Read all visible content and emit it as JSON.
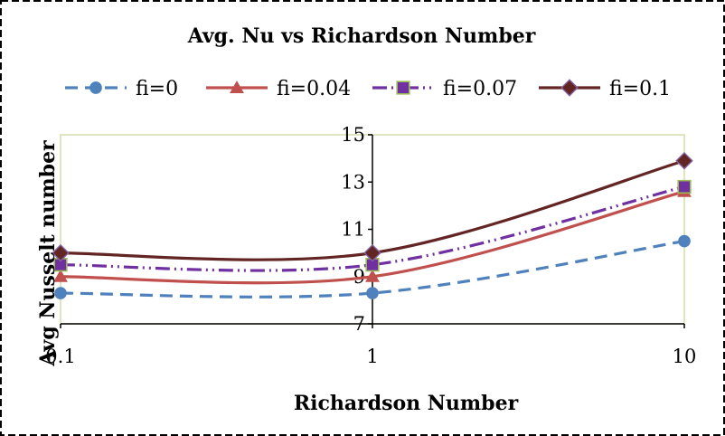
{
  "chart_data": {
    "type": "line",
    "title": "Avg. Nu vs Richardson Number",
    "xlabel": "Richardson Number",
    "ylabel": "Avg Nusselt number",
    "x_scale": "log",
    "x": [
      0.1,
      1,
      10
    ],
    "x_tick_labels": [
      "0.1",
      "1",
      "10"
    ],
    "ylim": [
      7,
      15
    ],
    "y_ticks": [
      7,
      9,
      11,
      13,
      15
    ],
    "y_tick_labels": [
      "7",
      "9",
      "11",
      "13",
      "15"
    ],
    "grid": false,
    "legend_position": "top",
    "series": [
      {
        "name": "fi=0",
        "values": [
          8.3,
          8.3,
          10.5
        ],
        "color": "#4F81BD",
        "marker": "circle",
        "dash": "dash"
      },
      {
        "name": "fi=0.04",
        "values": [
          9.0,
          9.0,
          12.6
        ],
        "color": "#C0504D",
        "marker": "triangle",
        "dash": "solid"
      },
      {
        "name": "fi=0.07",
        "values": [
          9.5,
          9.5,
          12.8
        ],
        "color": "#7030A0",
        "marker": "square",
        "dash": "dash-dot-dot"
      },
      {
        "name": "fi=0.1",
        "values": [
          10.0,
          10.0,
          13.9
        ],
        "color": "#632523",
        "marker": "diamond",
        "dash": "solid"
      }
    ],
    "colors": {
      "plot_border": "#d6dcaa",
      "frame": "#000000"
    }
  }
}
